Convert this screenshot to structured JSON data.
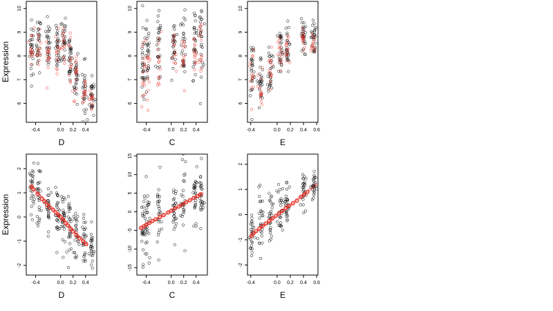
{
  "chart_data": [
    {
      "type": "scatter",
      "xlabel": "D",
      "ylabel": "Expression",
      "xlim": [
        -0.55,
        0.58
      ],
      "ylim": [
        5.2,
        10.3
      ],
      "xticks": [
        "-0.4",
        "0.0",
        "0.2",
        "0.4"
      ],
      "yticks": [
        "6",
        "7",
        "8",
        "9",
        "10"
      ],
      "grid": false,
      "series": [
        {
          "color": "#000000",
          "clusters": [
            [
              -0.46,
              8.3,
              0.6
            ],
            [
              -0.35,
              8.5,
              0.6
            ],
            [
              -0.2,
              8.4,
              0.5
            ],
            [
              -0.05,
              8.2,
              0.5
            ],
            [
              0.05,
              8.7,
              0.6
            ],
            [
              0.15,
              8.0,
              0.6
            ],
            [
              0.25,
              7.2,
              0.6
            ],
            [
              0.38,
              6.5,
              0.6
            ],
            [
              0.5,
              6.3,
              0.5
            ]
          ]
        },
        {
          "color": "#e8241a",
          "clusters": [
            [
              -0.46,
              8.5,
              0.4
            ],
            [
              -0.35,
              8.2,
              0.4
            ],
            [
              -0.2,
              8.0,
              0.4
            ],
            [
              -0.05,
              8.3,
              0.4
            ],
            [
              0.05,
              8.4,
              0.4
            ],
            [
              0.15,
              7.8,
              0.5
            ],
            [
              0.25,
              7.0,
              0.5
            ],
            [
              0.38,
              6.5,
              0.4
            ],
            [
              0.5,
              6.2,
              0.4
            ]
          ]
        }
      ]
    },
    {
      "type": "scatter",
      "xlabel": "C",
      "ylabel": "",
      "xlim": [
        -0.55,
        0.58
      ],
      "ylim": [
        5.2,
        10.3
      ],
      "xticks": [
        "-0.4",
        "0.0",
        "0.2",
        "0.4"
      ],
      "yticks": [
        "6",
        "7",
        "8",
        "9",
        "10"
      ],
      "grid": false,
      "series": [
        {
          "color": "#000000",
          "clusters": [
            [
              -0.45,
              7.5,
              0.8
            ],
            [
              -0.38,
              7.8,
              0.9
            ],
            [
              -0.2,
              8.2,
              0.7
            ],
            [
              0.05,
              8.5,
              0.6
            ],
            [
              0.2,
              8.6,
              0.7
            ],
            [
              0.38,
              8.6,
              0.8
            ],
            [
              0.48,
              8.8,
              0.7
            ]
          ]
        },
        {
          "color": "#e8241a",
          "clusters": [
            [
              -0.45,
              7.2,
              0.8
            ],
            [
              -0.38,
              7.5,
              0.8
            ],
            [
              -0.2,
              7.6,
              0.7
            ],
            [
              0.05,
              7.9,
              0.6
            ],
            [
              0.2,
              7.8,
              0.7
            ],
            [
              0.38,
              8.1,
              0.7
            ],
            [
              0.48,
              8.4,
              0.7
            ]
          ]
        }
      ]
    },
    {
      "type": "scatter",
      "xlabel": "E",
      "ylabel": "",
      "xlim": [
        -0.45,
        0.62
      ],
      "ylim": [
        5.2,
        10.3
      ],
      "xticks": [
        "-0.4",
        "0.0",
        "0.2",
        "0.4",
        "0.6"
      ],
      "yticks": [
        "6",
        "7",
        "8",
        "9",
        "10"
      ],
      "grid": false,
      "series": [
        {
          "color": "#000000",
          "clusters": [
            [
              -0.38,
              7.6,
              0.8
            ],
            [
              -0.25,
              6.8,
              0.6
            ],
            [
              -0.1,
              7.5,
              0.6
            ],
            [
              0.05,
              8.3,
              0.5
            ],
            [
              0.15,
              8.3,
              0.5
            ],
            [
              0.4,
              8.8,
              0.4
            ],
            [
              0.55,
              8.8,
              0.4
            ]
          ]
        },
        {
          "color": "#e8241a",
          "clusters": [
            [
              -0.38,
              7.3,
              0.7
            ],
            [
              -0.25,
              6.5,
              0.5
            ],
            [
              -0.1,
              7.3,
              0.5
            ],
            [
              0.05,
              8.0,
              0.4
            ],
            [
              0.15,
              8.1,
              0.4
            ],
            [
              0.4,
              8.7,
              0.3
            ],
            [
              0.55,
              8.6,
              0.3
            ]
          ]
        }
      ]
    },
    {
      "type": "scatter",
      "xlabel": "D",
      "ylabel": "Expression",
      "xlim": [
        -0.55,
        0.58
      ],
      "ylim": [
        -2.4,
        2.6
      ],
      "xticks": [
        "-0.4",
        "0.0",
        "0.2",
        "0.4"
      ],
      "yticks": [
        "-2",
        "-1",
        "0",
        "1",
        "2"
      ],
      "grid": false,
      "series": [
        {
          "color": "#000000",
          "clusters": [
            [
              -0.46,
              1.2,
              0.5
            ],
            [
              -0.35,
              0.9,
              0.6
            ],
            [
              -0.2,
              0.4,
              0.5
            ],
            [
              -0.05,
              0.1,
              0.5
            ],
            [
              0.05,
              -0.1,
              0.6
            ],
            [
              0.15,
              -0.4,
              0.6
            ],
            [
              0.25,
              -0.6,
              0.5
            ],
            [
              0.38,
              -1.0,
              0.5
            ],
            [
              0.5,
              -1.4,
              0.5
            ]
          ]
        },
        {
          "color": "#e8241a",
          "line": [
            [
              -0.48,
              1.3
            ],
            [
              0.42,
              -1.15
            ]
          ],
          "points": [
            [
              -0.46,
              1.25
            ],
            [
              -0.44,
              1.15
            ],
            [
              -0.37,
              0.95
            ],
            [
              -0.3,
              0.75
            ],
            [
              -0.26,
              0.65
            ],
            [
              -0.22,
              0.5
            ],
            [
              -0.18,
              0.4
            ],
            [
              -0.12,
              0.3
            ],
            [
              -0.08,
              0.2
            ],
            [
              -0.04,
              0.1
            ],
            [
              0.0,
              0.0
            ],
            [
              0.04,
              -0.1
            ],
            [
              0.08,
              -0.25
            ],
            [
              0.12,
              -0.35
            ],
            [
              0.16,
              -0.5
            ],
            [
              0.2,
              -0.6
            ],
            [
              0.25,
              -0.75
            ],
            [
              0.3,
              -0.88
            ],
            [
              0.36,
              -1.0
            ],
            [
              0.41,
              -1.12
            ]
          ]
        }
      ]
    },
    {
      "type": "scatter",
      "xlabel": "C",
      "ylabel": "",
      "xlim": [
        -0.55,
        0.58
      ],
      "ylim": [
        -17,
        15.5
      ],
      "xticks": [
        "-0.4",
        "0.0",
        "0.2",
        "0.4"
      ],
      "yticks": [
        "-15",
        "-10",
        "-5",
        "0",
        "5",
        "10",
        "15"
      ],
      "grid": false,
      "series": [
        {
          "color": "#000000",
          "clusters": [
            [
              -0.45,
              -3,
              5
            ],
            [
              -0.38,
              -4,
              6
            ],
            [
              -0.2,
              -1,
              5
            ],
            [
              0.05,
              1,
              4
            ],
            [
              0.2,
              2,
              5
            ],
            [
              0.38,
              3,
              5
            ],
            [
              0.48,
              4,
              4
            ]
          ]
        },
        {
          "color": "#e8241a",
          "line": [
            [
              -0.5,
              -4.5
            ],
            [
              0.5,
              5.0
            ]
          ],
          "points": [
            [
              -0.48,
              -4.3
            ],
            [
              -0.44,
              -3.9
            ],
            [
              -0.4,
              -3.5
            ],
            [
              -0.35,
              -3.0
            ],
            [
              -0.3,
              -2.5
            ],
            [
              -0.25,
              -2.0
            ],
            [
              -0.18,
              -1.4
            ],
            [
              -0.12,
              -0.9
            ],
            [
              -0.05,
              -0.2
            ],
            [
              0.0,
              0.3
            ],
            [
              0.06,
              0.9
            ],
            [
              0.12,
              1.4
            ],
            [
              0.18,
              2.0
            ],
            [
              0.24,
              2.6
            ],
            [
              0.3,
              3.1
            ],
            [
              0.36,
              3.7
            ],
            [
              0.42,
              4.2
            ],
            [
              0.47,
              4.7
            ]
          ]
        }
      ]
    },
    {
      "type": "scatter",
      "xlabel": "E",
      "ylabel": "",
      "xlim": [
        -0.45,
        0.62
      ],
      "ylim": [
        -2.4,
        2.4
      ],
      "xticks": [
        "-0.4",
        "0.0",
        "0.2",
        "0.4",
        "0.6"
      ],
      "yticks": [
        "-2",
        "-1",
        "0",
        "1",
        "2"
      ],
      "grid": false,
      "series": [
        {
          "color": "#000000",
          "clusters": [
            [
              -0.38,
              -0.8,
              0.6
            ],
            [
              -0.25,
              -0.4,
              0.6
            ],
            [
              -0.1,
              0.0,
              0.5
            ],
            [
              0.05,
              0.3,
              0.5
            ],
            [
              0.15,
              0.5,
              0.5
            ],
            [
              0.4,
              1.0,
              0.4
            ],
            [
              0.55,
              1.1,
              0.3
            ]
          ]
        },
        {
          "color": "#e8241a",
          "line": [
            [
              -0.4,
              -0.85
            ],
            [
              0.6,
              1.2
            ]
          ],
          "points": [
            [
              -0.39,
              -0.85
            ],
            [
              -0.36,
              -0.75
            ],
            [
              -0.32,
              -0.65
            ],
            [
              -0.27,
              -0.55
            ],
            [
              -0.22,
              -0.45
            ],
            [
              -0.17,
              -0.35
            ],
            [
              -0.12,
              -0.25
            ],
            [
              -0.07,
              -0.15
            ],
            [
              -0.02,
              -0.05
            ],
            [
              0.03,
              0.05
            ],
            [
              0.08,
              0.15
            ],
            [
              0.13,
              0.25
            ],
            [
              0.18,
              0.35
            ],
            [
              0.24,
              0.45
            ],
            [
              0.3,
              0.55
            ],
            [
              0.36,
              0.7
            ],
            [
              0.41,
              0.8
            ],
            [
              0.46,
              0.9
            ]
          ]
        }
      ]
    }
  ]
}
